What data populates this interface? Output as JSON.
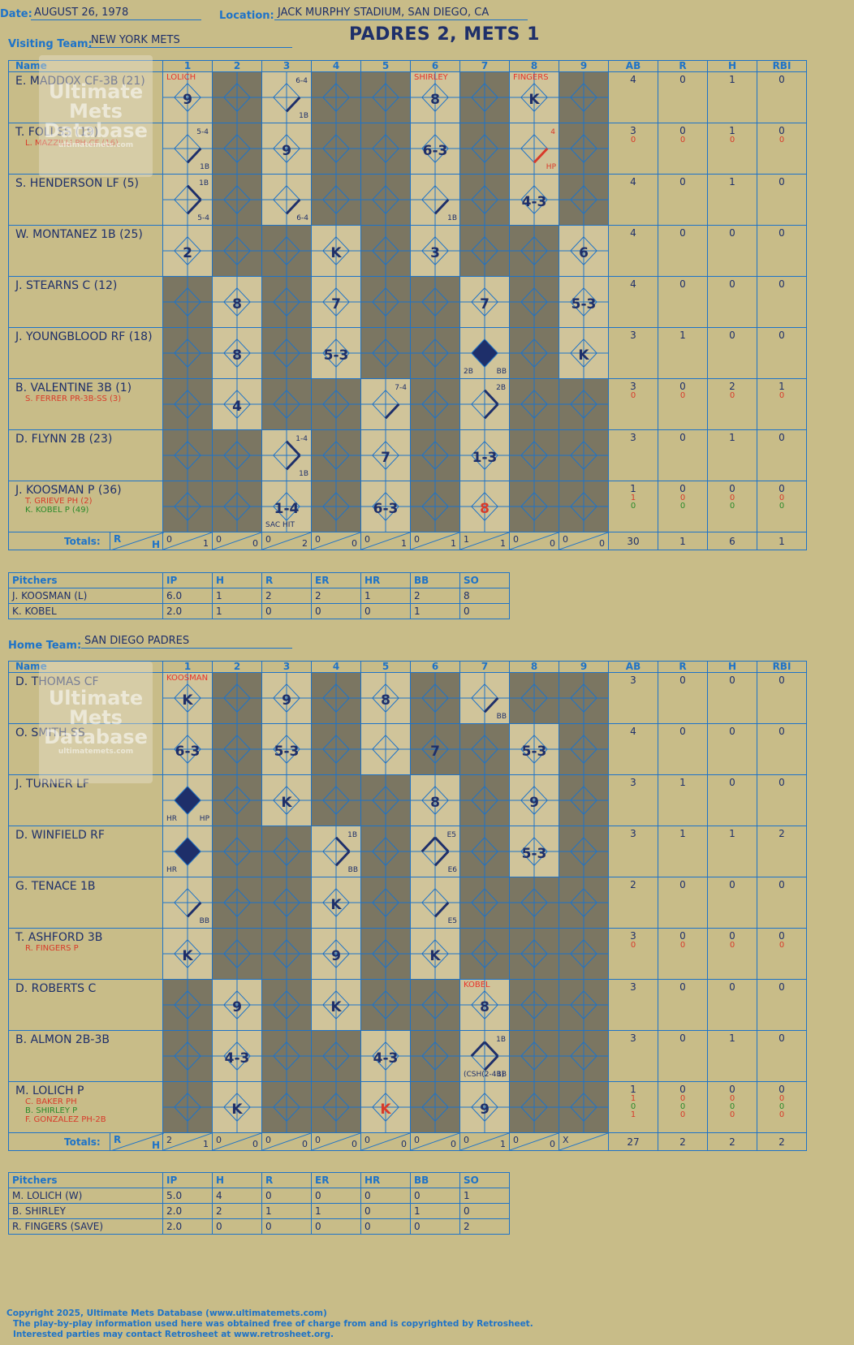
{
  "header": {
    "date_label": "Date:",
    "date": "AUGUST 26, 1978",
    "location_label": "Location:",
    "location": "JACK MURPHY STADIUM, SAN DIEGO, CA",
    "visiting_label": "Visiting Team:",
    "visiting_team": "NEW YORK METS",
    "home_label": "Home Team:",
    "home_team": "SAN DIEGO PADRES",
    "result": "PADRES 2, METS 1"
  },
  "columns": [
    "Name",
    "1",
    "2",
    "3",
    "4",
    "5",
    "6",
    "7",
    "8",
    "9",
    "AB",
    "R",
    "H",
    "RBI"
  ],
  "totals_label": "Totals:",
  "pitcher_columns": [
    "Pitchers",
    "IP",
    "H",
    "R",
    "ER",
    "HR",
    "BB",
    "SO"
  ],
  "watermark": {
    "line1": "Ultimate",
    "line2": "Mets",
    "line3": "Database",
    "url": "ultimatemets.com"
  },
  "visitors": {
    "rows": [
      {
        "name": "E. MADDOX CF-3B (21)",
        "subs": [],
        "ab": [
          "4"
        ],
        "r": [
          "0"
        ],
        "h": [
          "1"
        ],
        "rbi": [
          "0"
        ],
        "cells": [
          {
            "i": 1,
            "res": "9",
            "pitch": "LOLICH"
          },
          {
            "i": 3,
            "res": "",
            "note": "6-4",
            "note2": "1B",
            "path": 1
          },
          {
            "i": 6,
            "res": "8",
            "pitch": "SHIRLEY"
          },
          {
            "i": 8,
            "res": "K",
            "pitch": "FINGERS"
          }
        ]
      },
      {
        "name": "T. FOLI SS (19)",
        "subs": [
          {
            "t": "L. MAZZILLI PH-CF (16)",
            "c": "red"
          }
        ],
        "ab": [
          "3",
          "0"
        ],
        "r": [
          "0",
          "0"
        ],
        "h": [
          "1",
          "0"
        ],
        "rbi": [
          "0",
          "0"
        ],
        "cells": [
          {
            "i": 1,
            "res": "",
            "note": "5-4",
            "note2": "1B",
            "path": 1
          },
          {
            "i": 3,
            "res": "9"
          },
          {
            "i": 6,
            "res": "6-3"
          },
          {
            "i": 8,
            "res": "",
            "note": "4",
            "note2": "HP",
            "path": 1,
            "red": true
          }
        ]
      },
      {
        "name": "S. HENDERSON LF (5)",
        "subs": [],
        "ab": [
          "4"
        ],
        "r": [
          "0"
        ],
        "h": [
          "1"
        ],
        "rbi": [
          "0"
        ],
        "cells": [
          {
            "i": 1,
            "res": "",
            "note": "1B",
            "note2": "5-4",
            "path": 2
          },
          {
            "i": 3,
            "res": "",
            "note2": "6-4",
            "path": 1
          },
          {
            "i": 6,
            "res": "",
            "note2": "1B",
            "path": 1
          },
          {
            "i": 8,
            "res": "4-3"
          }
        ]
      },
      {
        "name": "W. MONTANEZ 1B (25)",
        "subs": [],
        "ab": [
          "4"
        ],
        "r": [
          "0"
        ],
        "h": [
          "0"
        ],
        "rbi": [
          "0"
        ],
        "cells": [
          {
            "i": 1,
            "res": "2"
          },
          {
            "i": 4,
            "res": "K"
          },
          {
            "i": 6,
            "res": "3"
          },
          {
            "i": 9,
            "res": "6"
          }
        ]
      },
      {
        "name": "J. STEARNS C (12)",
        "subs": [],
        "ab": [
          "4"
        ],
        "r": [
          "0"
        ],
        "h": [
          "0"
        ],
        "rbi": [
          "0"
        ],
        "cells": [
          {
            "i": 2,
            "res": "8"
          },
          {
            "i": 4,
            "res": "7"
          },
          {
            "i": 7,
            "res": "7"
          },
          {
            "i": 9,
            "res": "5-3"
          }
        ]
      },
      {
        "name": "J. YOUNGBLOOD RF (18)",
        "subs": [],
        "ab": [
          "3"
        ],
        "r": [
          "1"
        ],
        "h": [
          "0"
        ],
        "rbi": [
          "0"
        ],
        "cells": [
          {
            "i": 2,
            "res": "8"
          },
          {
            "i": 4,
            "res": "5-3"
          },
          {
            "i": 7,
            "res": "",
            "run": true,
            "note2": "BB",
            "note3": "2B"
          },
          {
            "i": 9,
            "res": "K"
          }
        ]
      },
      {
        "name": "B. VALENTINE 3B (1)",
        "subs": [
          {
            "t": "S. FERRER PR-3B-SS (3)",
            "c": "red"
          }
        ],
        "ab": [
          "3",
          "0"
        ],
        "r": [
          "0",
          "0"
        ],
        "h": [
          "2",
          "0"
        ],
        "rbi": [
          "1",
          "0"
        ],
        "cells": [
          {
            "i": 2,
            "res": "4"
          },
          {
            "i": 5,
            "res": "",
            "note": "7-4",
            "path": 1
          },
          {
            "i": 7,
            "res": "",
            "note": "2B",
            "path": 2
          }
        ]
      },
      {
        "name": "D. FLYNN 2B (23)",
        "subs": [],
        "ab": [
          "3"
        ],
        "r": [
          "0"
        ],
        "h": [
          "1"
        ],
        "rbi": [
          "0"
        ],
        "cells": [
          {
            "i": 3,
            "res": "",
            "note": "1-4",
            "note2": "1B",
            "path": 2
          },
          {
            "i": 5,
            "res": "7"
          },
          {
            "i": 7,
            "res": "1-3"
          }
        ]
      },
      {
        "name": "J. KOOSMAN P (36)",
        "subs": [
          {
            "t": "T. GRIEVE PH (2)",
            "c": "red"
          },
          {
            "t": "K. KOBEL P (49)",
            "c": "green"
          }
        ],
        "ab": [
          "1",
          "1",
          "0"
        ],
        "r": [
          "0",
          "0",
          "0"
        ],
        "h": [
          "0",
          "0",
          "0"
        ],
        "rbi": [
          "0",
          "0",
          "0"
        ],
        "cells": [
          {
            "i": 3,
            "res": "1-4",
            "note3": "SAC HIT"
          },
          {
            "i": 5,
            "res": "6-3"
          },
          {
            "i": 7,
            "res": "8",
            "red": true
          }
        ]
      }
    ],
    "dark": [
      [
        2,
        4,
        5,
        7,
        9
      ],
      [
        2,
        4,
        5,
        7,
        9
      ],
      [
        2,
        4,
        5,
        7,
        9
      ],
      [
        2,
        3,
        5,
        7,
        8
      ],
      [
        1,
        3,
        5,
        6,
        8
      ],
      [
        1,
        3,
        5,
        6,
        8
      ],
      [
        1,
        3,
        4,
        6,
        8,
        9
      ],
      [
        1,
        2,
        4,
        6,
        8,
        9
      ],
      [
        1,
        2,
        4,
        6,
        8,
        9
      ]
    ],
    "totals": [
      {
        "r": "0",
        "h": "1"
      },
      {
        "r": "0",
        "h": "0"
      },
      {
        "r": "0",
        "h": "2"
      },
      {
        "r": "0",
        "h": "0"
      },
      {
        "r": "0",
        "h": "1"
      },
      {
        "r": "0",
        "h": "1"
      },
      {
        "r": "1",
        "h": "1"
      },
      {
        "r": "0",
        "h": "0"
      },
      {
        "r": "0",
        "h": "0"
      }
    ],
    "totals_stats": [
      "30",
      "1",
      "6",
      "1"
    ],
    "pitchers": [
      [
        "J. KOOSMAN (L)",
        "6.0",
        "1",
        "2",
        "2",
        "1",
        "2",
        "8"
      ],
      [
        "K. KOBEL",
        "2.0",
        "1",
        "0",
        "0",
        "0",
        "1",
        "0"
      ]
    ]
  },
  "home": {
    "rows": [
      {
        "name": "D. THOMAS CF",
        "subs": [],
        "ab": [
          "3"
        ],
        "r": [
          "0"
        ],
        "h": [
          "0"
        ],
        "rbi": [
          "0"
        ],
        "cells": [
          {
            "i": 1,
            "res": "K",
            "pitch": "KOOSMAN"
          },
          {
            "i": 3,
            "res": "9"
          },
          {
            "i": 5,
            "res": "8"
          },
          {
            "i": 7,
            "res": "",
            "note2": "BB",
            "path": 1
          }
        ]
      },
      {
        "name": "O. SMITH SS",
        "subs": [],
        "ab": [
          "4"
        ],
        "r": [
          "0"
        ],
        "h": [
          "0"
        ],
        "rbi": [
          "0"
        ],
        "cells": [
          {
            "i": 1,
            "res": "6-3"
          },
          {
            "i": 3,
            "res": "5-3"
          },
          {
            "i": 6,
            "res": "7"
          },
          {
            "i": 8,
            "res": "5-3"
          }
        ]
      },
      {
        "name": "J. TURNER LF",
        "subs": [],
        "ab": [
          "3"
        ],
        "r": [
          "1"
        ],
        "h": [
          "0"
        ],
        "rbi": [
          "0"
        ],
        "cells": [
          {
            "i": 1,
            "res": "",
            "run": true,
            "note3": "HR",
            "note2": "HP"
          },
          {
            "i": 3,
            "res": "K"
          },
          {
            "i": 6,
            "res": "8"
          },
          {
            "i": 8,
            "res": "9"
          }
        ]
      },
      {
        "name": "D. WINFIELD RF",
        "subs": [],
        "ab": [
          "3"
        ],
        "r": [
          "1"
        ],
        "h": [
          "1"
        ],
        "rbi": [
          "2"
        ],
        "cells": [
          {
            "i": 1,
            "res": "",
            "run": true,
            "note3": "HR"
          },
          {
            "i": 4,
            "res": "",
            "note": "1B",
            "note2": "BB",
            "path": 2
          },
          {
            "i": 6,
            "res": "",
            "note": "E5",
            "note2": "E6",
            "path": 3
          },
          {
            "i": 8,
            "res": "5-3"
          }
        ]
      },
      {
        "name": "G. TENACE 1B",
        "subs": [],
        "ab": [
          "2"
        ],
        "r": [
          "0"
        ],
        "h": [
          "0"
        ],
        "rbi": [
          "0"
        ],
        "cells": [
          {
            "i": 1,
            "res": "",
            "note2": "BB",
            "path": 1
          },
          {
            "i": 4,
            "res": "K"
          },
          {
            "i": 6,
            "res": "",
            "note2": "E5",
            "path": 1
          }
        ]
      },
      {
        "name": "T. ASHFORD 3B",
        "subs": [
          {
            "t": "R. FINGERS P",
            "c": "red"
          }
        ],
        "ab": [
          "3",
          "0"
        ],
        "r": [
          "0",
          "0"
        ],
        "h": [
          "0",
          "0"
        ],
        "rbi": [
          "0",
          "0"
        ],
        "cells": [
          {
            "i": 1,
            "res": "K"
          },
          {
            "i": 4,
            "res": "9"
          },
          {
            "i": 6,
            "res": "K"
          }
        ]
      },
      {
        "name": "D. ROBERTS C",
        "subs": [],
        "ab": [
          "3"
        ],
        "r": [
          "0"
        ],
        "h": [
          "0"
        ],
        "rbi": [
          "0"
        ],
        "cells": [
          {
            "i": 2,
            "res": "9"
          },
          {
            "i": 4,
            "res": "K"
          },
          {
            "i": 7,
            "res": "8",
            "pitch": "KOBEL"
          }
        ]
      },
      {
        "name": "B. ALMON 2B-3B",
        "subs": [],
        "ab": [
          "3"
        ],
        "r": [
          "0"
        ],
        "h": [
          "1"
        ],
        "rbi": [
          "0"
        ],
        "cells": [
          {
            "i": 2,
            "res": "4-3"
          },
          {
            "i": 5,
            "res": "4-3"
          },
          {
            "i": 7,
            "res": "",
            "note": "1B",
            "note2": "1B",
            "path": 3,
            "note3": "(CSH(2-4B)"
          }
        ]
      },
      {
        "name": "M. LOLICH P",
        "subs": [
          {
            "t": "C. BAKER PH",
            "c": "red"
          },
          {
            "t": "B. SHIRLEY P",
            "c": "green"
          },
          {
            "t": "F. GONZALEZ PH-2B",
            "c": "red"
          }
        ],
        "ab": [
          "1",
          "1",
          "0",
          "1"
        ],
        "r": [
          "0",
          "0",
          "0",
          "0"
        ],
        "h": [
          "0",
          "0",
          "0",
          "0"
        ],
        "rbi": [
          "0",
          "0",
          "0",
          "0"
        ],
        "cells": [
          {
            "i": 2,
            "res": "K"
          },
          {
            "i": 5,
            "res": "K",
            "red": true
          },
          {
            "i": 7,
            "res": "9"
          }
        ]
      }
    ],
    "dark": [
      [
        2,
        4,
        6,
        8,
        9
      ],
      [
        2,
        4,
        6,
        7,
        9
      ],
      [
        2,
        4,
        5,
        7,
        9
      ],
      [
        2,
        3,
        5,
        7,
        9
      ],
      [
        2,
        3,
        5,
        7,
        8,
        9
      ],
      [
        2,
        3,
        5,
        7,
        8,
        9
      ],
      [
        1,
        3,
        5,
        6,
        8,
        9
      ],
      [
        1,
        3,
        4,
        6,
        8,
        9
      ],
      [
        1,
        3,
        4,
        6,
        8,
        9
      ]
    ],
    "totals": [
      {
        "r": "2",
        "h": "1"
      },
      {
        "r": "0",
        "h": "0"
      },
      {
        "r": "0",
        "h": "0"
      },
      {
        "r": "0",
        "h": "0"
      },
      {
        "r": "0",
        "h": "0"
      },
      {
        "r": "0",
        "h": "0"
      },
      {
        "r": "0",
        "h": "1"
      },
      {
        "r": "0",
        "h": "0"
      },
      {
        "r": "X",
        "h": ""
      }
    ],
    "totals_stats": [
      "27",
      "2",
      "2",
      "2"
    ],
    "pitchers": [
      [
        "M. LOLICH (W)",
        "5.0",
        "4",
        "0",
        "0",
        "0",
        "0",
        "1"
      ],
      [
        "B. SHIRLEY",
        "2.0",
        "2",
        "1",
        "1",
        "0",
        "1",
        "0"
      ],
      [
        "R. FINGERS (SAVE)",
        "2.0",
        "0",
        "0",
        "0",
        "0",
        "0",
        "2"
      ]
    ]
  },
  "footer": {
    "copyright": "Copyright 2025, Ultimate Mets Database (www.ultimatemets.com)",
    "line2": "The play-by-play information used here was obtained free of charge from and is copyrighted by Retrosheet.",
    "line3": "Interested parties may contact Retrosheet at www.retrosheet.org."
  }
}
